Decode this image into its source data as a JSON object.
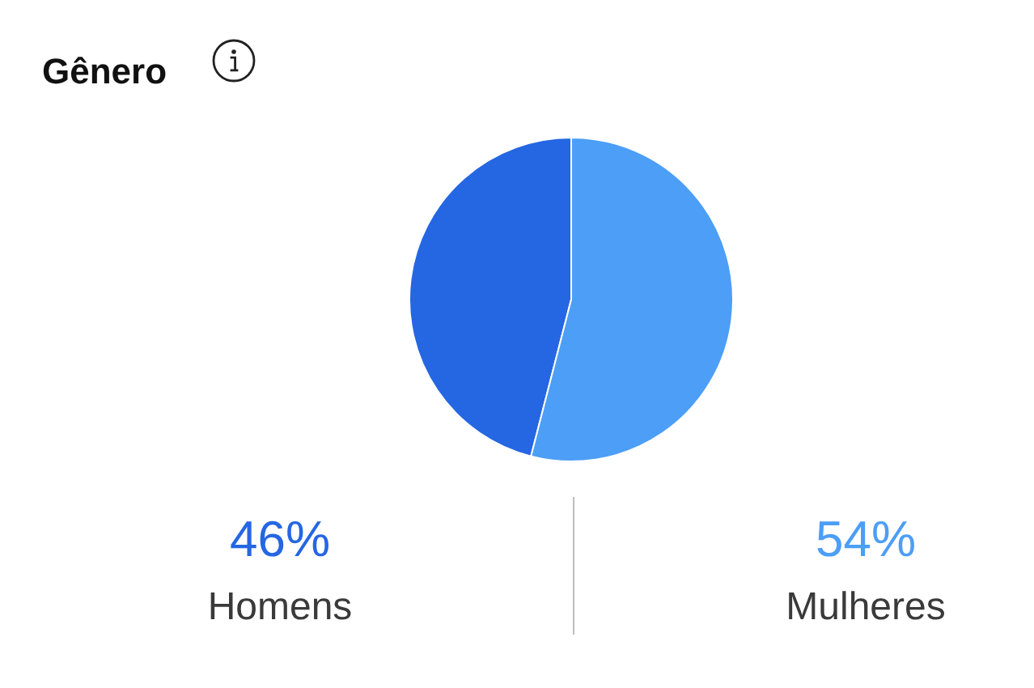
{
  "chart_data": {
    "type": "pie",
    "title": "Gênero",
    "categories": [
      "Homens",
      "Mulheres"
    ],
    "values": [
      46,
      54
    ],
    "colors": [
      "#2566e3",
      "#4c9ef6"
    ],
    "value_labels": [
      "46%",
      "54%"
    ]
  }
}
